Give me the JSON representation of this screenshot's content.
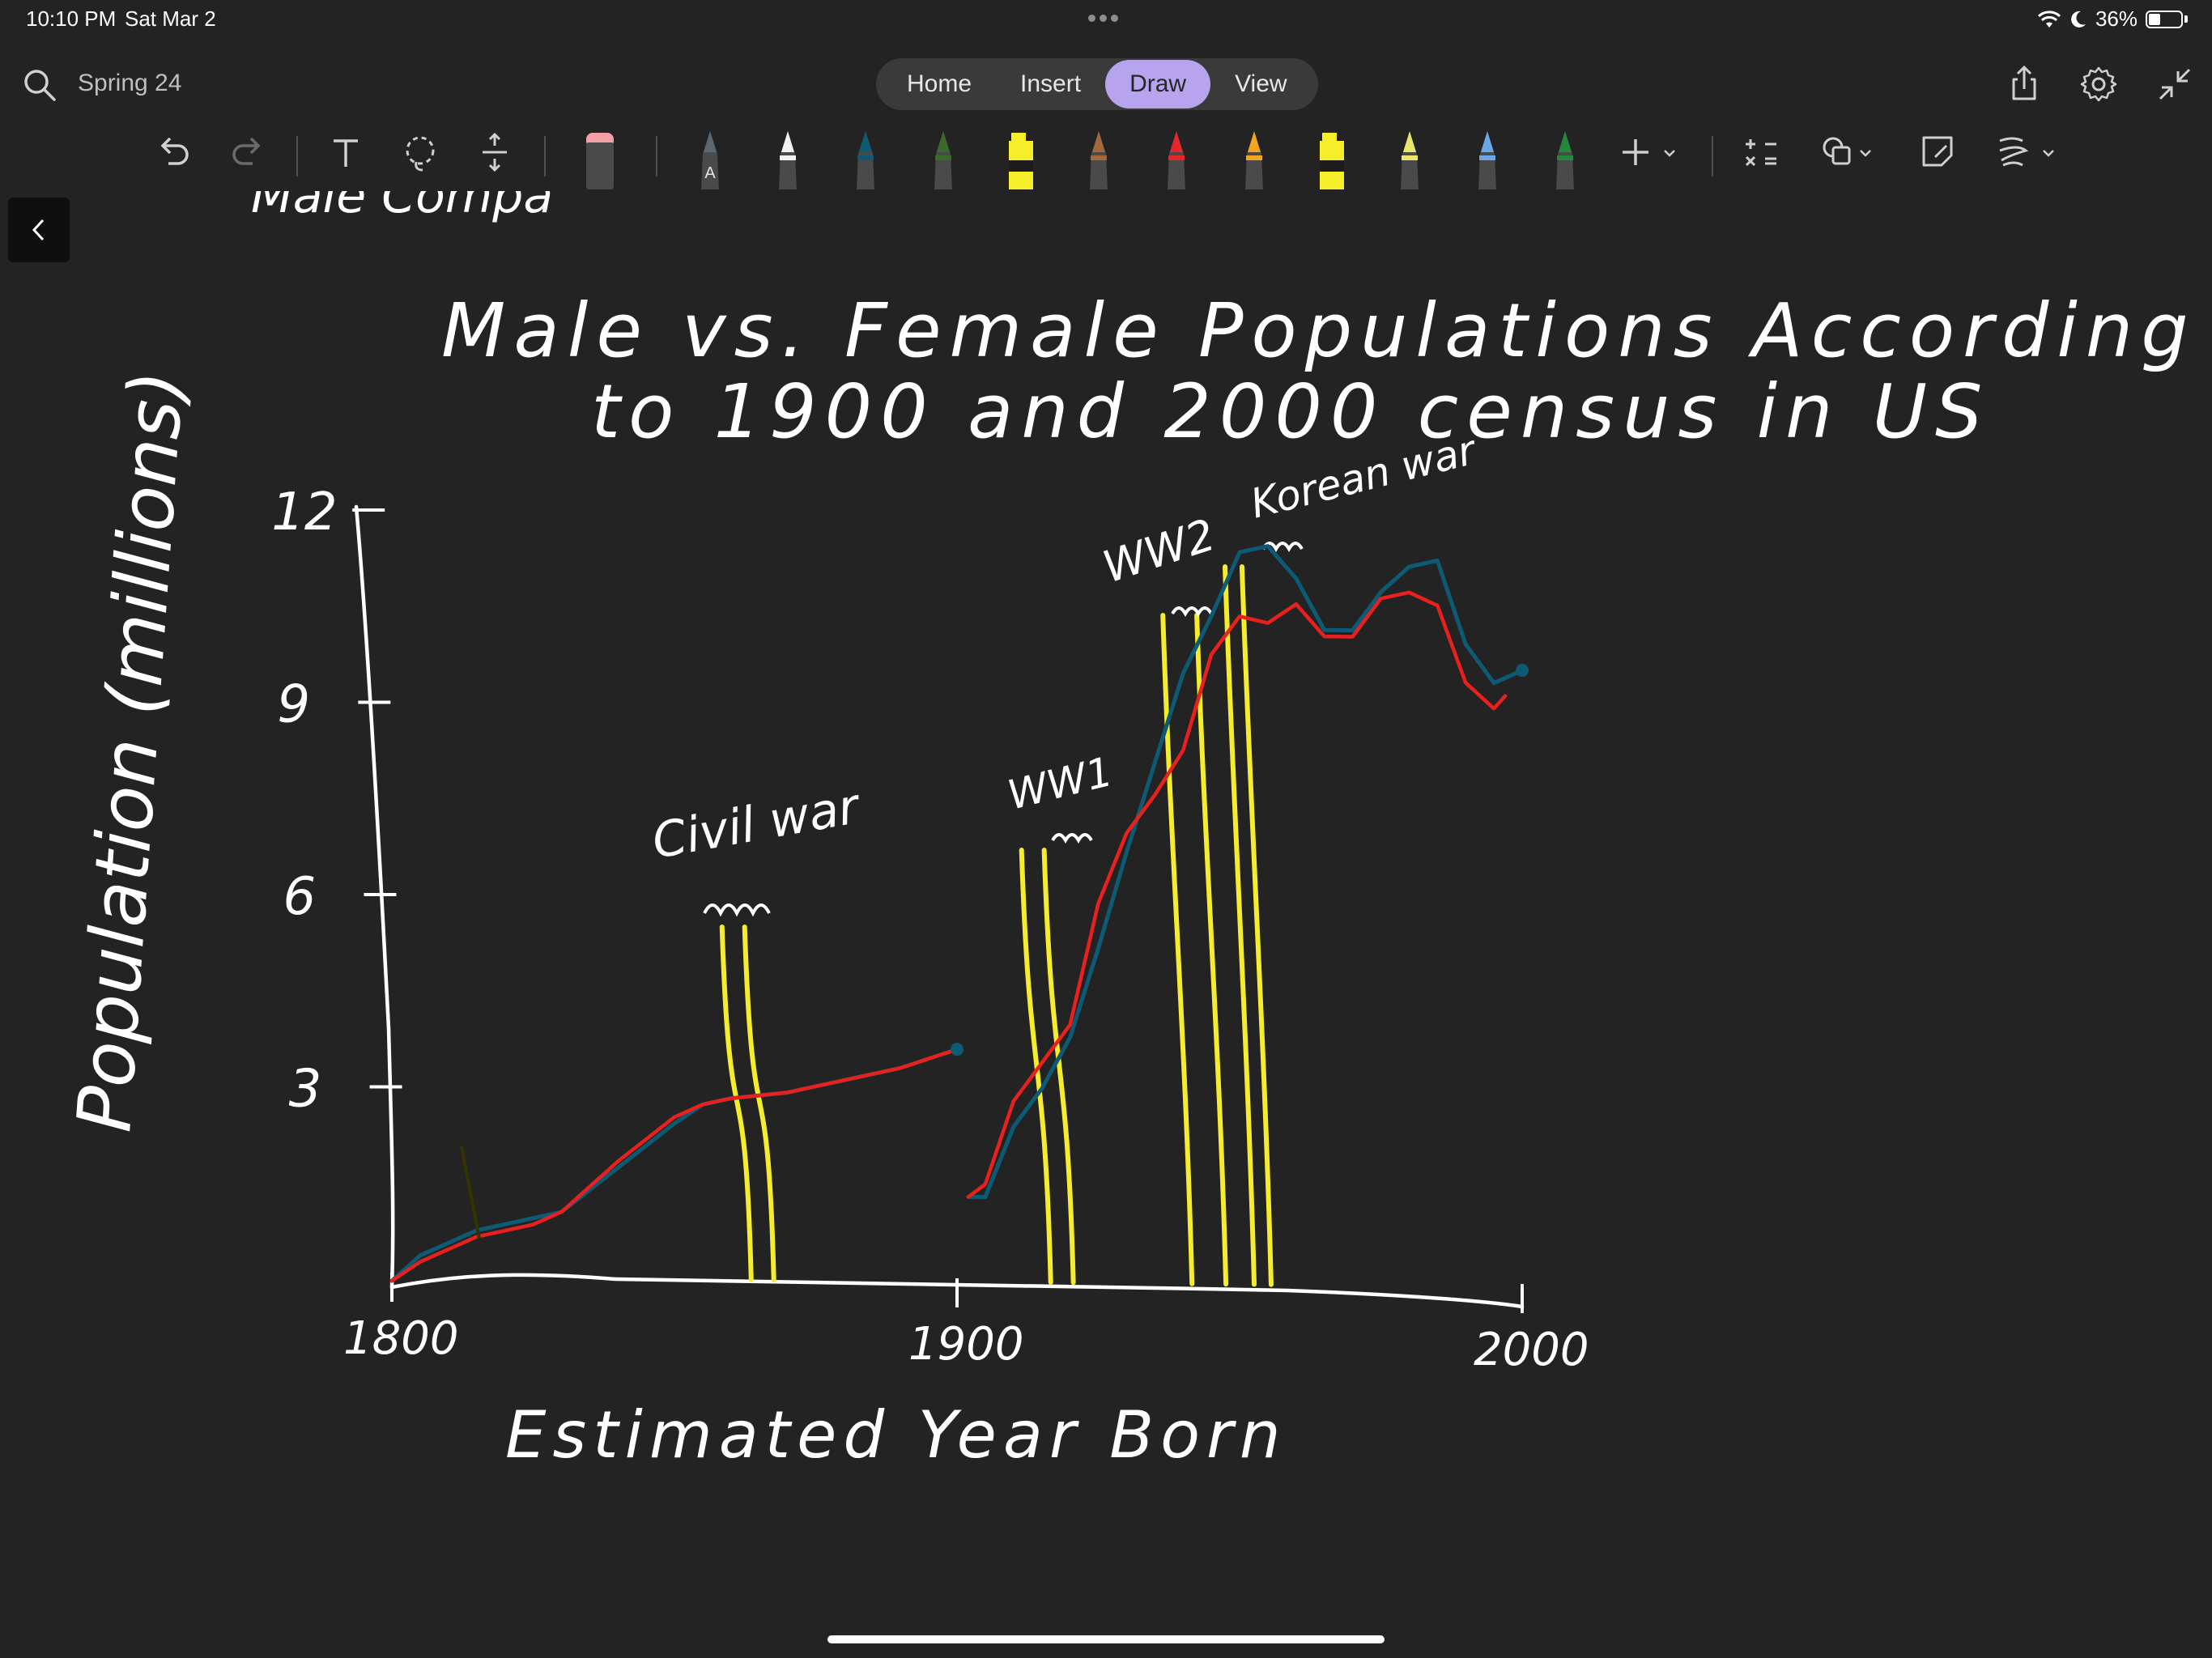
{
  "status_bar": {
    "time": "10:10 PM",
    "date": "Sat Mar 2",
    "battery": "36%",
    "battery_level": 0.36
  },
  "header": {
    "notebook_title": "Spring 24",
    "tabs": [
      {
        "label": "Home",
        "active": false
      },
      {
        "label": "Insert",
        "active": false
      },
      {
        "label": "Draw",
        "active": true
      },
      {
        "label": "View",
        "active": false
      }
    ],
    "accent_color": "#b6a5ee"
  },
  "toolbar": {
    "tools": [
      "undo-icon",
      "redo-icon",
      "text-icon",
      "lasso-icon",
      "insert-space-icon",
      "eraser-icon"
    ],
    "pens": [
      {
        "color": "#5d6770",
        "label": "A"
      },
      {
        "color": "#f2f2f2"
      },
      {
        "color": "#0e5a73"
      },
      {
        "color": "#3a6b2a"
      },
      {
        "color": "#f7ee2a",
        "highlighter": true
      },
      {
        "color": "#a5683d"
      },
      {
        "color": "#e6262b"
      },
      {
        "color": "#f2a51d"
      },
      {
        "color": "#f7ee2a",
        "highlighter": true
      },
      {
        "color": "#e9e86a"
      },
      {
        "color": "#6aa6e8"
      },
      {
        "color": "#23883a"
      }
    ],
    "right_tools": [
      "add-icon",
      "math-icon",
      "shapes-icon",
      "ink-to-shape-icon",
      "ink-to-text-icon"
    ]
  },
  "note": {
    "title_line1": "Male vs. Female Populations According",
    "title_line2": "to 1900 and 2000 census in US",
    "cut_off_top_text": "Male Compa",
    "ylabel": "Population (millions)",
    "xlabel": "Estimated Year Born",
    "annotations": {
      "civil_war": "Civil war",
      "ww1": "WW1",
      "ww2": "WW2",
      "korean_war": "Korean war"
    }
  },
  "chart_data": {
    "type": "line",
    "title": "Male vs. Female Populations According to 1900 and 2000 census in US",
    "xlabel": "Estimated Year Born",
    "ylabel": "Population (millions)",
    "x_ticks": [
      "1800",
      "1900",
      "2000"
    ],
    "y_ticks": [
      "3",
      "6",
      "9",
      "12"
    ],
    "xlim": [
      1800,
      2000
    ],
    "ylim": [
      0,
      12
    ],
    "series_colors": {
      "red": "#e8201e",
      "teal": "#0d5a74",
      "highlight": "#f5ec2e"
    },
    "series": [
      {
        "segment": "1900 census",
        "red": {
          "x": [
            1800,
            1805,
            1815,
            1825,
            1830,
            1840,
            1850,
            1855,
            1860,
            1870,
            1880,
            1890,
            1900
          ],
          "y": [
            0.1,
            0.4,
            0.8,
            1.0,
            1.2,
            2.0,
            2.7,
            2.9,
            3.0,
            3.1,
            3.3,
            3.5,
            3.8
          ]
        },
        "teal": {
          "x": [
            1800,
            1805,
            1815,
            1825,
            1830,
            1840,
            1850,
            1855,
            1860,
            1870,
            1880,
            1890,
            1900
          ],
          "y": [
            0.1,
            0.5,
            0.9,
            1.1,
            1.2,
            1.9,
            2.6,
            2.9,
            3.0,
            3.1,
            3.3,
            3.5,
            3.8
          ]
        }
      },
      {
        "segment": "2000 census",
        "red": {
          "x": [
            1902,
            1905,
            1910,
            1915,
            1920,
            1925,
            1930,
            1935,
            1940,
            1945,
            1950,
            1955,
            1960,
            1965,
            1970,
            1975,
            1980,
            1985,
            1990,
            1995,
            1997
          ],
          "y": [
            1.5,
            1.7,
            3.0,
            3.6,
            4.2,
            6.1,
            7.2,
            7.8,
            8.5,
            10.0,
            10.6,
            10.5,
            10.8,
            10.3,
            10.3,
            10.9,
            11.0,
            10.8,
            9.6,
            9.2,
            9.4
          ]
        },
        "teal": {
          "x": [
            1902,
            1905,
            1910,
            1915,
            1920,
            1925,
            1930,
            1935,
            1940,
            1945,
            1950,
            1955,
            1960,
            1965,
            1970,
            1975,
            1980,
            1985,
            1990,
            1995,
            2000
          ],
          "y": [
            1.5,
            1.5,
            2.6,
            3.2,
            4.0,
            5.4,
            6.9,
            8.3,
            9.7,
            10.6,
            11.6,
            11.7,
            11.2,
            10.4,
            10.4,
            11.0,
            11.4,
            11.5,
            10.2,
            9.6,
            9.8
          ]
        }
      }
    ],
    "war_markers": [
      {
        "label": "Civil war",
        "x": [
          1861,
          1865
        ]
      },
      {
        "label": "WW1",
        "x": [
          1914,
          1918
        ]
      },
      {
        "label": "WW2",
        "x": [
          1939,
          1945
        ]
      },
      {
        "label": "Korean war",
        "x": [
          1950,
          1953
        ]
      }
    ]
  }
}
